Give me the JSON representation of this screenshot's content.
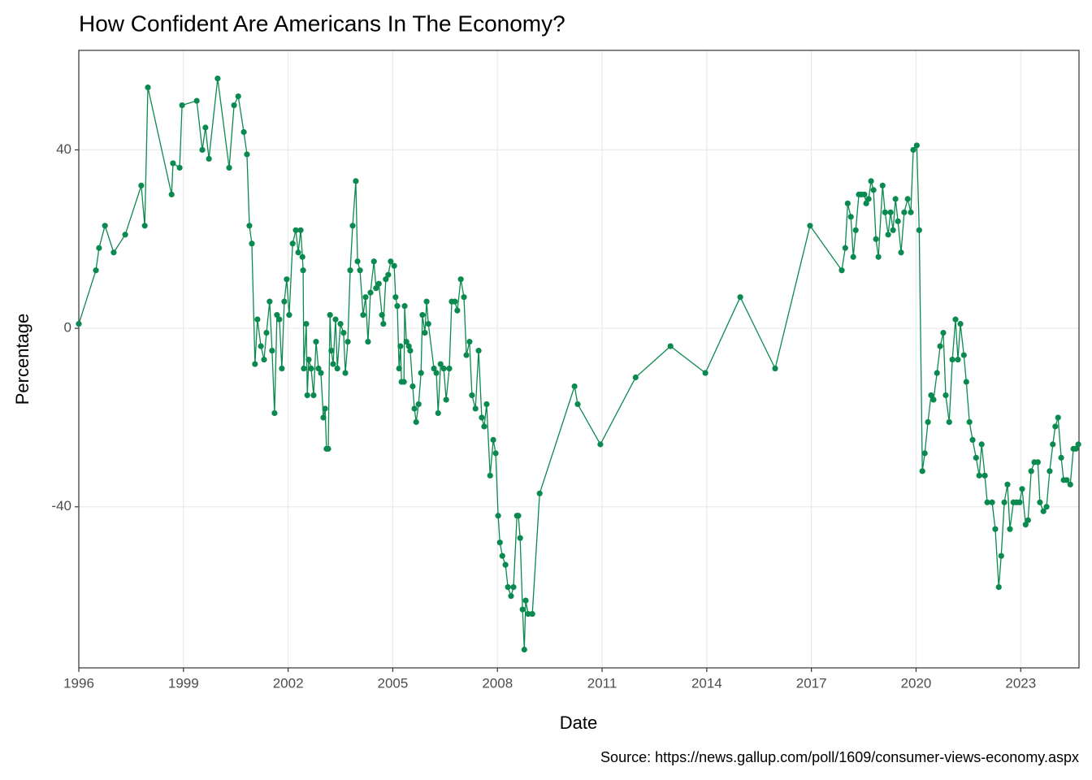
{
  "chart_data": {
    "type": "line",
    "title": "How Confident Are Americans In The Economy?",
    "x_label": "Date",
    "y_label": "Percentage",
    "caption": "Source: https://news.gallup.com/poll/1609/consumer-views-economy.aspx",
    "color": "#0b8a4f",
    "grid": true,
    "xlim": [
      1996,
      2024.67
    ],
    "ylim": [
      -76.1,
      62.3
    ],
    "xticks": [
      1996,
      1999,
      2002,
      2005,
      2008,
      2011,
      2014,
      2017,
      2020,
      2023
    ],
    "yticks": [
      -40,
      0,
      40
    ],
    "x": [
      1996.0,
      1996.49,
      1996.58,
      1996.75,
      1997.0,
      1997.33,
      1997.79,
      1997.89,
      1997.98,
      1998.66,
      1998.7,
      1998.89,
      1998.96,
      1999.38,
      1999.54,
      1999.63,
      1999.73,
      1999.98,
      2000.31,
      2000.45,
      2000.57,
      2000.73,
      2000.82,
      2000.89,
      2000.96,
      2001.05,
      2001.12,
      2001.22,
      2001.31,
      2001.38,
      2001.47,
      2001.54,
      2001.61,
      2001.68,
      2001.75,
      2001.82,
      2001.89,
      2001.96,
      2002.03,
      2002.13,
      2002.22,
      2002.29,
      2002.36,
      2002.41,
      2002.43,
      2002.45,
      2002.52,
      2002.55,
      2002.59,
      2002.66,
      2002.73,
      2002.8,
      2002.87,
      2002.94,
      2003.01,
      2003.06,
      2003.1,
      2003.15,
      2003.2,
      2003.24,
      2003.29,
      2003.36,
      2003.41,
      2003.5,
      2003.59,
      2003.64,
      2003.71,
      2003.78,
      2003.85,
      2003.94,
      2003.99,
      2004.06,
      2004.15,
      2004.22,
      2004.29,
      2004.36,
      2004.46,
      2004.52,
      2004.6,
      2004.69,
      2004.73,
      2004.8,
      2004.87,
      2004.94,
      2005.04,
      2005.08,
      2005.13,
      2005.18,
      2005.22,
      2005.25,
      2005.32,
      2005.34,
      2005.39,
      2005.46,
      2005.5,
      2005.57,
      2005.62,
      2005.67,
      2005.74,
      2005.81,
      2005.85,
      2005.92,
      2005.97,
      2006.02,
      2006.18,
      2006.25,
      2006.3,
      2006.37,
      2006.46,
      2006.53,
      2006.62,
      2006.69,
      2006.78,
      2006.85,
      2006.95,
      2007.04,
      2007.11,
      2007.2,
      2007.27,
      2007.37,
      2007.46,
      2007.55,
      2007.62,
      2007.69,
      2007.79,
      2007.88,
      2007.95,
      2008.02,
      2008.07,
      2008.14,
      2008.23,
      2008.3,
      2008.39,
      2008.46,
      2008.56,
      2008.6,
      2008.65,
      2008.72,
      2008.77,
      2008.81,
      2008.88,
      2009.0,
      2009.21,
      2010.21,
      2010.3,
      2010.95,
      2011.96,
      2012.96,
      2013.96,
      2014.96,
      2015.96,
      2016.96,
      2017.87,
      2017.97,
      2018.04,
      2018.13,
      2018.2,
      2018.27,
      2018.36,
      2018.43,
      2018.52,
      2018.57,
      2018.64,
      2018.71,
      2018.78,
      2018.85,
      2018.92,
      2019.04,
      2019.11,
      2019.2,
      2019.27,
      2019.34,
      2019.41,
      2019.48,
      2019.57,
      2019.66,
      2019.76,
      2019.85,
      2019.92,
      2020.02,
      2020.09,
      2020.18,
      2020.25,
      2020.34,
      2020.43,
      2020.5,
      2020.6,
      2020.69,
      2020.78,
      2020.85,
      2020.95,
      2021.04,
      2021.13,
      2021.2,
      2021.27,
      2021.37,
      2021.44,
      2021.53,
      2021.62,
      2021.72,
      2021.81,
      2021.88,
      2021.97,
      2022.04,
      2022.18,
      2022.27,
      2022.37,
      2022.44,
      2022.53,
      2022.62,
      2022.69,
      2022.79,
      2022.88,
      2022.97,
      2023.04,
      2023.14,
      2023.21,
      2023.3,
      2023.39,
      2023.49,
      2023.55,
      2023.65,
      2023.74,
      2023.83,
      2023.92,
      2023.99,
      2024.07,
      2024.16,
      2024.23,
      2024.32,
      2024.42,
      2024.51,
      2024.58,
      2024.65
    ],
    "values": [
      1,
      13,
      18,
      23,
      17,
      21,
      32,
      23,
      54,
      30,
      37,
      36,
      50,
      51,
      40,
      45,
      38,
      56,
      36,
      50,
      52,
      44,
      39,
      23,
      19,
      -8,
      2,
      -4,
      -7,
      -1,
      6,
      -5,
      -19,
      3,
      2,
      -9,
      6,
      11,
      3,
      19,
      22,
      17,
      22,
      16,
      13,
      -9,
      1,
      -15,
      -7,
      -9,
      -15,
      -3,
      -9,
      -10,
      -20,
      -18,
      -27,
      -27,
      3,
      -5,
      -8,
      2,
      -9,
      1,
      -1,
      -10,
      -3,
      13,
      23,
      33,
      15,
      13,
      3,
      7,
      -3,
      8,
      15,
      9,
      10,
      3,
      1,
      11,
      12,
      15,
      14,
      7,
      5,
      -9,
      -4,
      -12,
      -12,
      5,
      -3,
      -4,
      -5,
      -13,
      -18,
      -21,
      -17,
      -10,
      3,
      -1,
      6,
      1,
      -9,
      -10,
      -19,
      -8,
      -9,
      -16,
      -9,
      6,
      6,
      4,
      11,
      7,
      -6,
      -3,
      -15,
      -18,
      -5,
      -20,
      -22,
      -17,
      -33,
      -25,
      -28,
      -42,
      -48,
      -51,
      -53,
      -58,
      -60,
      -58,
      -42,
      -42,
      -47,
      -63,
      -72,
      -61,
      -64,
      -64,
      -37,
      -13,
      -17,
      -26,
      -11,
      -4,
      -10,
      7,
      -9,
      23,
      13,
      18,
      28,
      25,
      16,
      22,
      30,
      30,
      30,
      28,
      29,
      33,
      31,
      20,
      16,
      32,
      26,
      21,
      26,
      22,
      29,
      24,
      17,
      26,
      29,
      26,
      40,
      41,
      22,
      -32,
      -28,
      -21,
      -15,
      -16,
      -10,
      -4,
      -1,
      -15,
      -21,
      -7,
      2,
      -7,
      1,
      -6,
      -12,
      -21,
      -25,
      -29,
      -33,
      -26,
      -33,
      -39,
      -39,
      -45,
      -58,
      -51,
      -39,
      -35,
      -45,
      -39,
      -39,
      -39,
      -36,
      -44,
      -43,
      -32,
      -30,
      -30,
      -39,
      -41,
      -40,
      -32,
      -26,
      -22,
      -20,
      -29,
      -34,
      -34,
      -35,
      -27,
      -27,
      -26
    ]
  }
}
